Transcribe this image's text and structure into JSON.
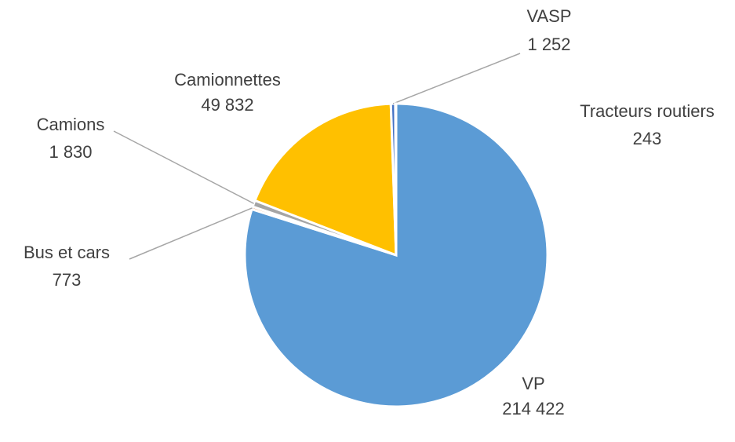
{
  "chart_data": {
    "type": "pie",
    "categories": [
      "VP",
      "Bus et cars",
      "Camions",
      "Camionnettes",
      "VASP",
      "Tracteurs routiers"
    ],
    "values": [
      214422,
      773,
      1830,
      49832,
      1252,
      243
    ],
    "value_labels": [
      "214 422",
      "773",
      "1 830",
      "49 832",
      "1 252",
      "243"
    ],
    "colors": [
      "#5b9bd5",
      "#ed7d31",
      "#a5a5a5",
      "#ffc000",
      "#4472c4",
      "#70ad47"
    ]
  }
}
